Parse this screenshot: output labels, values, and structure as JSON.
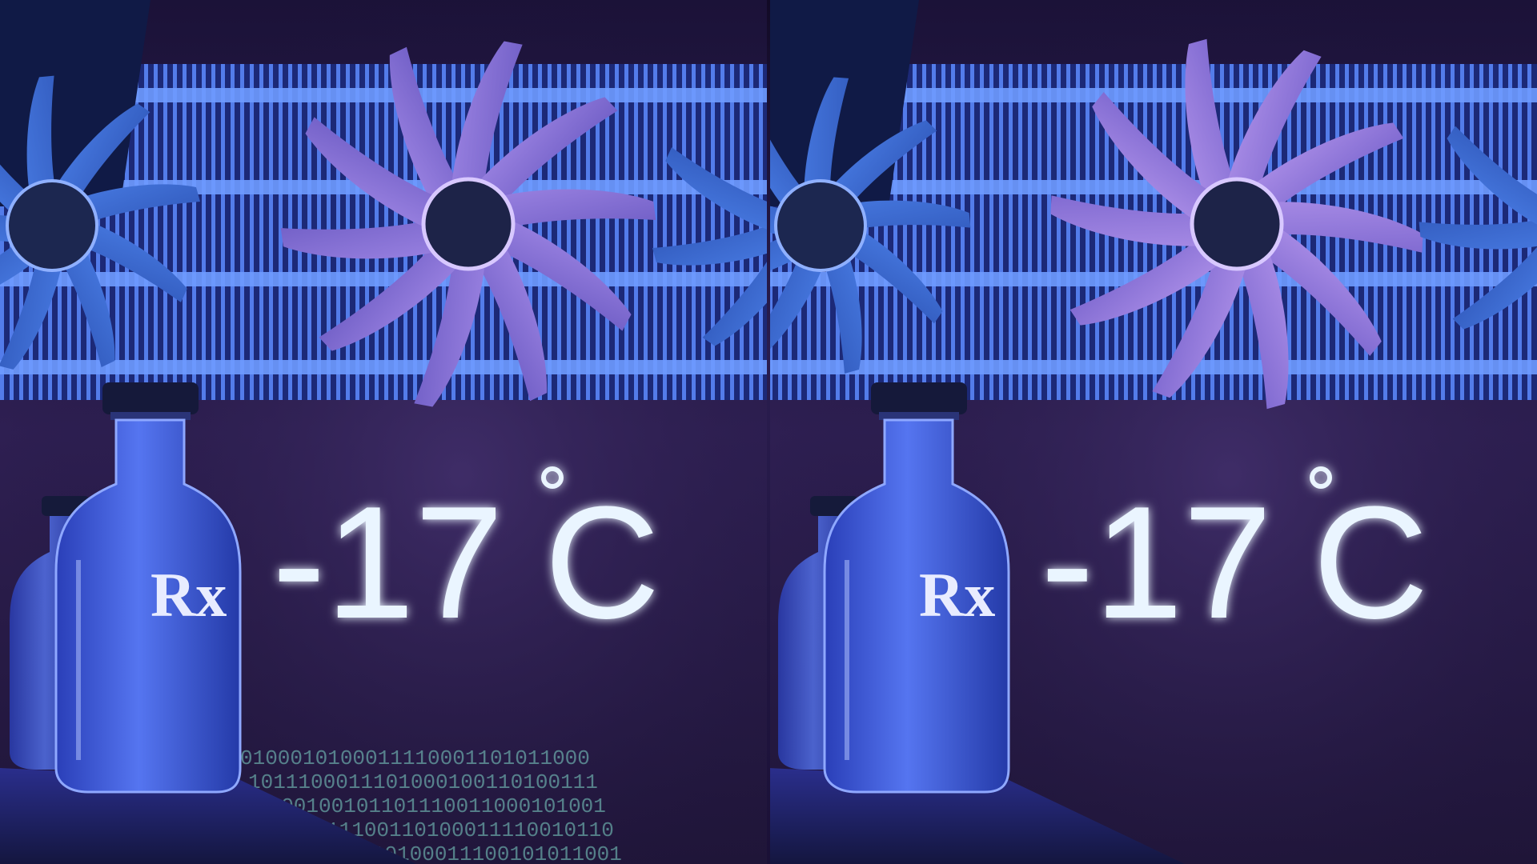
{
  "scene": {
    "temperature_label": "-17",
    "temperature_unit": "C",
    "bottle_label": "Rx",
    "binary_rows": [
      "0100010100011110001101011000",
      "1011100011101000100110100111",
      "1100100101101110011000101001",
      "0110111100110100011110010110",
      "1001011110100011100101011001"
    ],
    "colors": {
      "background": "#2b1d4f",
      "heatsink_glow": "#4d7bff",
      "fan_blue": "#3f6fd8",
      "fan_purple": "#8a6ed8",
      "text_glow": "#e8f4ff",
      "bottle": "#2f4fd0"
    },
    "panels": [
      "left",
      "right"
    ]
  }
}
